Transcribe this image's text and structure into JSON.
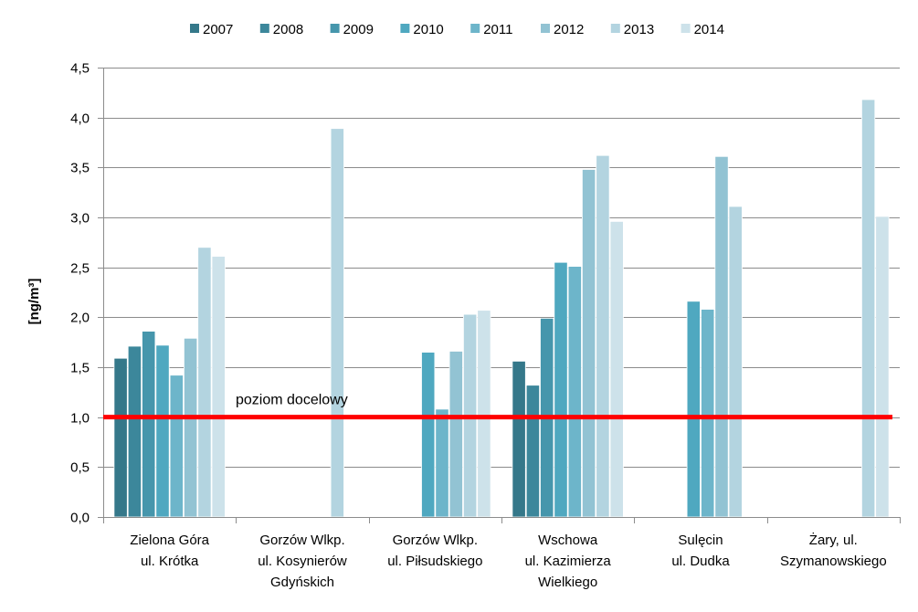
{
  "chart_data": {
    "type": "bar",
    "title": "",
    "xlabel": "",
    "ylabel": "[ng/m³]",
    "ylim": [
      0,
      4.5
    ],
    "yticks": [
      "0,0",
      "0,5",
      "1,0",
      "1,5",
      "2,0",
      "2,5",
      "3,0",
      "3,5",
      "4,0",
      "4,5"
    ],
    "ytick_values": [
      0,
      0.5,
      1.0,
      1.5,
      2.0,
      2.5,
      3.0,
      3.5,
      4.0,
      4.5
    ],
    "legend_position": "top",
    "grid": true,
    "categories": [
      [
        "Zielona Góra",
        "ul. Krótka"
      ],
      [
        "Gorzów Wlkp.",
        "ul. Kosynierów",
        "Gdyńskich"
      ],
      [
        "Gorzów Wlkp.",
        "ul. Piłsudskiego"
      ],
      [
        "Wschowa",
        "ul. Kazimierza",
        "Wielkiego"
      ],
      [
        "Sulęcin",
        "ul. Dudka"
      ],
      [
        "Żary, ul.",
        "Szymanowskiego"
      ]
    ],
    "series": [
      {
        "name": "2007",
        "color": "#35788a",
        "values": [
          1.59,
          null,
          null,
          1.56,
          null,
          null
        ]
      },
      {
        "name": "2008",
        "color": "#3c879b",
        "values": [
          1.71,
          null,
          null,
          1.32,
          null,
          null
        ]
      },
      {
        "name": "2009",
        "color": "#4696ac",
        "values": [
          1.86,
          null,
          null,
          1.99,
          null,
          null
        ]
      },
      {
        "name": "2010",
        "color": "#4fa8c0",
        "values": [
          1.72,
          null,
          1.65,
          2.55,
          2.16,
          null
        ]
      },
      {
        "name": "2011",
        "color": "#6db5ca",
        "values": [
          1.42,
          null,
          1.08,
          2.51,
          2.08,
          null
        ]
      },
      {
        "name": "2012",
        "color": "#92c3d3",
        "values": [
          1.79,
          null,
          1.66,
          3.48,
          3.61,
          null
        ]
      },
      {
        "name": "2013",
        "color": "#b3d4e0",
        "values": [
          2.7,
          3.89,
          2.03,
          3.62,
          3.11,
          4.18
        ]
      },
      {
        "name": "2014",
        "color": "#cde2ea",
        "values": [
          2.61,
          null,
          2.07,
          2.96,
          null,
          3.01
        ]
      }
    ],
    "reference_line": {
      "label": "poziom docelowy",
      "value": 1.0,
      "color": "#ff0000"
    }
  }
}
